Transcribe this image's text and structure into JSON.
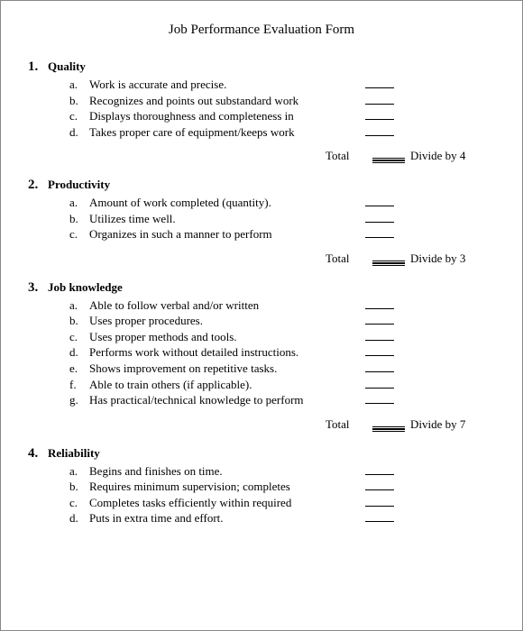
{
  "title": "Job Performance Evaluation Form",
  "text_color": "#000000",
  "background_color": "#ffffff",
  "border_color": "#888888",
  "font_family": "Times New Roman",
  "title_fontsize": 15,
  "section_title_fontsize": 13,
  "item_fontsize": 13,
  "total_label": "Total",
  "sections": [
    {
      "num": "1.",
      "title": "Quality",
      "items": [
        {
          "letter": "a.",
          "text": "Work is accurate and precise."
        },
        {
          "letter": "b.",
          "text": "Recognizes and points out substandard work"
        },
        {
          "letter": "c.",
          "text": "Displays thoroughness and completeness in"
        },
        {
          "letter": "d.",
          "text": "Takes proper care of equipment/keeps work"
        }
      ],
      "divide": "Divide by 4",
      "show_total": true
    },
    {
      "num": "2.",
      "title": "Productivity",
      "items": [
        {
          "letter": "a.",
          "text": "Amount of work completed (quantity)."
        },
        {
          "letter": "b.",
          "text": "Utilizes time well."
        },
        {
          "letter": "c.",
          "text": "Organizes in such a manner to perform"
        }
      ],
      "divide": "Divide by 3",
      "show_total": true
    },
    {
      "num": "3.",
      "title": "Job knowledge",
      "items": [
        {
          "letter": "a.",
          "text": "Able to follow verbal and/or written"
        },
        {
          "letter": "b.",
          "text": "Uses proper procedures."
        },
        {
          "letter": "c.",
          "text": "Uses proper methods and tools."
        },
        {
          "letter": "d.",
          "text": "Performs work without detailed instructions."
        },
        {
          "letter": "e.",
          "text": "Shows improvement on repetitive tasks."
        },
        {
          "letter": "f.",
          "text": "Able to train others (if applicable)."
        },
        {
          "letter": "g.",
          "text": "Has practical/technical knowledge to perform"
        }
      ],
      "divide": "Divide by 7",
      "show_total": true
    },
    {
      "num": "4.",
      "title": "Reliability",
      "items": [
        {
          "letter": "a.",
          "text": "Begins and finishes on time."
        },
        {
          "letter": "b.",
          "text": "Requires minimum supervision; completes"
        },
        {
          "letter": "c.",
          "text": "Completes tasks efficiently within required"
        },
        {
          "letter": "d.",
          "text": "Puts in extra time and effort."
        }
      ],
      "divide": "",
      "show_total": false
    }
  ]
}
